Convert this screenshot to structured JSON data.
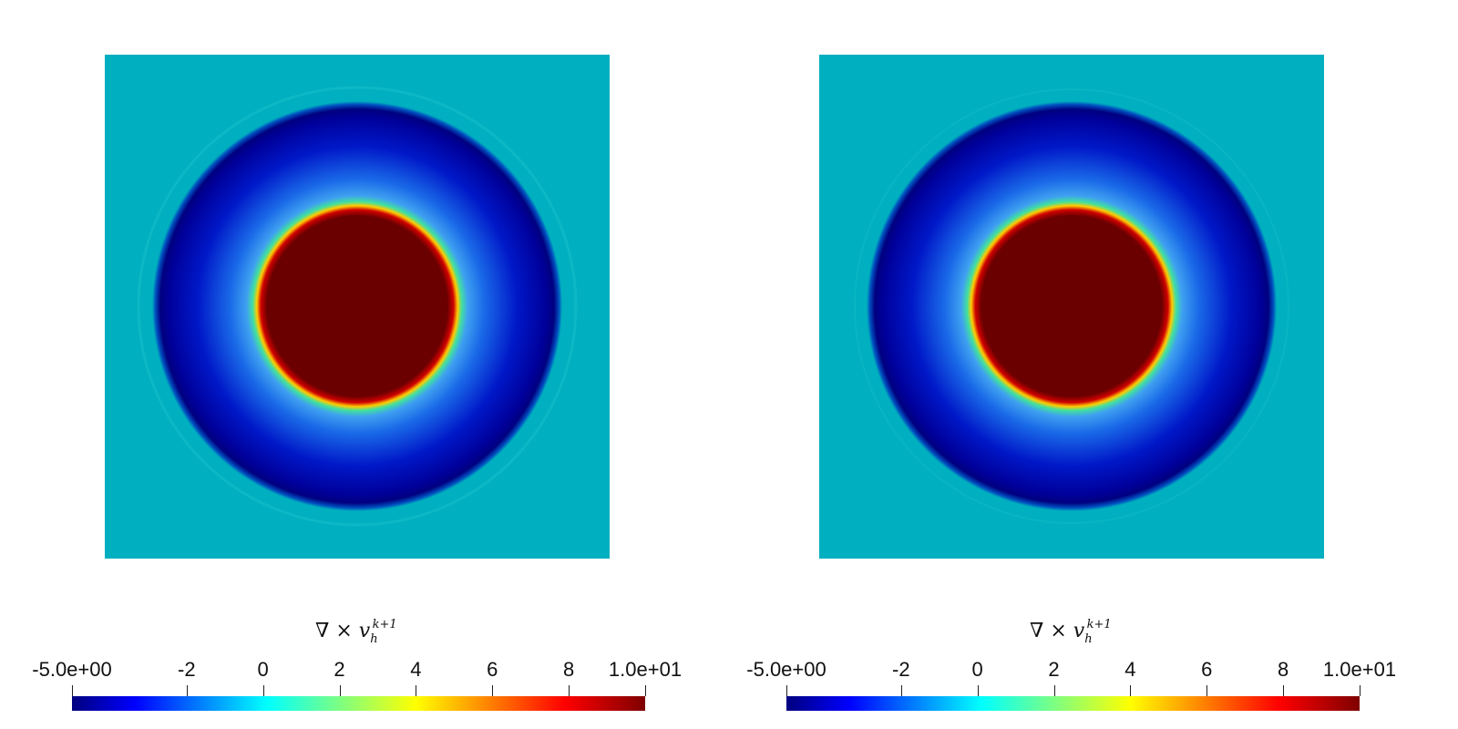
{
  "panels": [
    {
      "id": "left"
    },
    {
      "id": "right"
    }
  ],
  "colorbar": {
    "title_symbol": "∇ × ",
    "title_var": "v",
    "title_sub": "h",
    "title_sup": "k+1",
    "min_label": "-5.0e+00",
    "max_label": "1.0e+01",
    "ticks": [
      {
        "value": -5,
        "label": "-5.0e+00"
      },
      {
        "value": -2,
        "label": "-2"
      },
      {
        "value": 0,
        "label": "0"
      },
      {
        "value": 2,
        "label": "2"
      },
      {
        "value": 4,
        "label": "4"
      },
      {
        "value": 6,
        "label": "6"
      },
      {
        "value": 8,
        "label": "8"
      },
      {
        "value": 10,
        "label": "1.0e+01"
      }
    ],
    "range": [
      -5,
      10
    ],
    "colormap": [
      "#00007f",
      "#0000ff",
      "#00ffff",
      "#ffff00",
      "#ff0000",
      "#7f0000"
    ]
  },
  "colors": {
    "background_field": "#00afc0",
    "core": "#6b0000"
  }
}
